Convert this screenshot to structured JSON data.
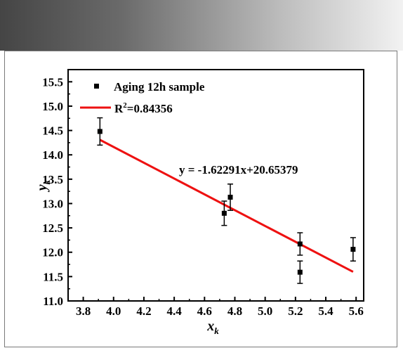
{
  "chart_data": {
    "type": "scatter",
    "xlabel": "x",
    "xlabel_sub": "k",
    "ylabel": "y",
    "ylabel_sub": "k",
    "xlim": [
      3.7,
      5.65
    ],
    "ylim": [
      11.0,
      15.75
    ],
    "xticks": [
      "3.8",
      "4.0",
      "4.2",
      "4.4",
      "4.6",
      "4.8",
      "5.0",
      "5.2",
      "5.4",
      "5.6"
    ],
    "yticks": [
      "11.0",
      "11.5",
      "12.0",
      "12.5",
      "13.0",
      "13.5",
      "14.0",
      "14.5",
      "15.0",
      "15.5"
    ],
    "series": [
      {
        "name": "Aging 12h sample",
        "points": [
          {
            "x": 3.91,
            "y": 14.48,
            "err": 0.28
          },
          {
            "x": 4.73,
            "y": 12.8,
            "err": 0.25
          },
          {
            "x": 4.77,
            "y": 13.13,
            "err": 0.27
          },
          {
            "x": 5.23,
            "y": 12.17,
            "err": 0.23
          },
          {
            "x": 5.23,
            "y": 11.59,
            "err": 0.23
          },
          {
            "x": 5.58,
            "y": 12.06,
            "err": 0.24
          }
        ]
      }
    ],
    "fit": {
      "slope": -1.62291,
      "intercept": 20.65379,
      "x_start": 3.91,
      "x_end": 5.58,
      "color": "#ee1111",
      "legend_prefix": "R",
      "legend_sup": "2",
      "legend_value": "=0.84356",
      "equation": "y = -1.62291x+20.65379"
    },
    "legend_position": "top-left",
    "grid": false
  }
}
